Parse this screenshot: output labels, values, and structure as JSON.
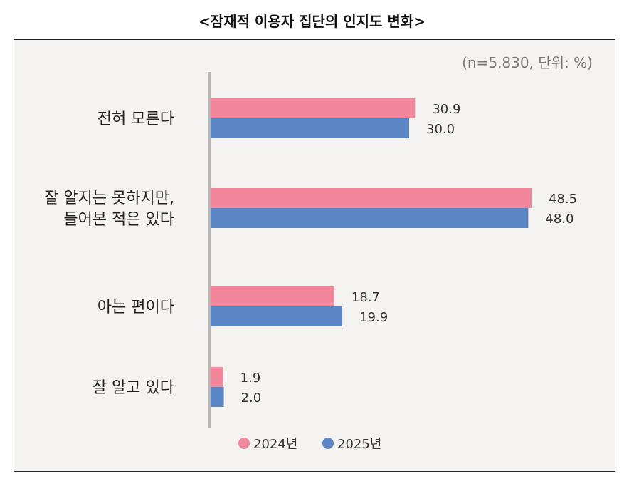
{
  "title": "<잠재적 이용자 집단의 인지도 변화>",
  "unit_note": "(n=5,830, 단위: %)",
  "colors": {
    "series_2024": "#f2879c",
    "series_2025": "#5b86c6"
  },
  "chart_data": {
    "type": "bar",
    "orientation": "horizontal",
    "categories": [
      [
        "전혀 모른다"
      ],
      [
        "잘 알지는 못하지만,",
        "들어본 적은 있다"
      ],
      [
        "아는 편이다"
      ],
      [
        "잘 알고 있다"
      ]
    ],
    "series": [
      {
        "name": "2024년",
        "values": [
          30.9,
          48.5,
          18.7,
          1.9
        ],
        "labels": [
          "30.9",
          "48.5",
          "18.7",
          "1.9"
        ]
      },
      {
        "name": "2025년",
        "values": [
          30.0,
          48.0,
          19.9,
          2.0
        ],
        "labels": [
          "30.0",
          "48.0",
          "19.9",
          "2.0"
        ]
      }
    ],
    "xlim": [
      0,
      50
    ],
    "grid": false,
    "legend_position": "bottom"
  }
}
